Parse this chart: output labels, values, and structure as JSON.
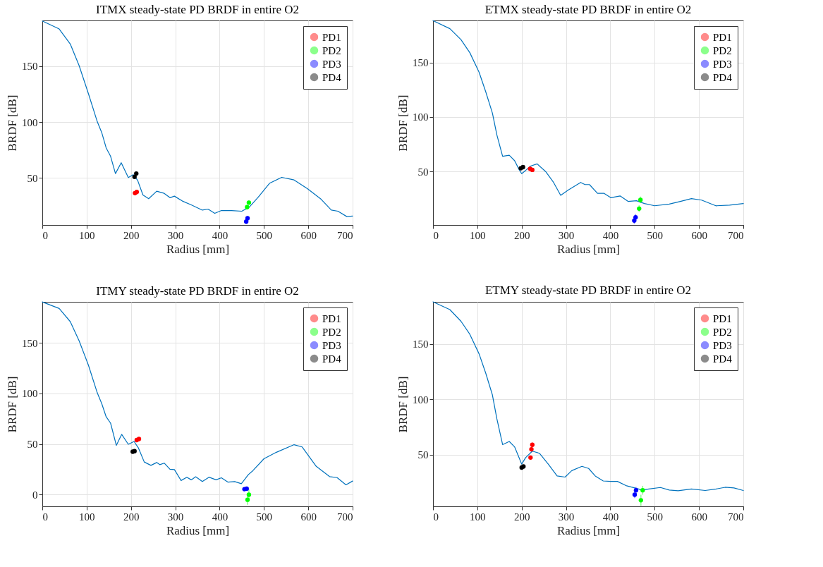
{
  "chart_data": [
    {
      "type": "line",
      "title": "ITMX steady-state PD BRDF in entire O2",
      "xlabel": "Radius [mm]",
      "ylabel": "BRDF [dB]",
      "xlim": [
        0,
        700
      ],
      "xticks": [
        0,
        100,
        200,
        300,
        400,
        500,
        600,
        700
      ],
      "ylim": [
        8,
        191
      ],
      "yticks": [
        50,
        100,
        150
      ],
      "grid": true,
      "legend": "top right",
      "series": [
        {
          "type": "line",
          "color": "#0072bd",
          "x": [
            0,
            38,
            63,
            83,
            104,
            124,
            134,
            144,
            154,
            165,
            178,
            194,
            205,
            215,
            227,
            240,
            258,
            275,
            288,
            298,
            316,
            336,
            361,
            374,
            389,
            404,
            427,
            450,
            467,
            487,
            513,
            540,
            568,
            598,
            629,
            652,
            667,
            687,
            700
          ],
          "values": [
            190.5,
            183.4,
            170,
            150.6,
            125.5,
            100.4,
            90.7,
            77,
            69.5,
            54,
            63.7,
            50.4,
            53,
            48,
            34.8,
            31.5,
            38.2,
            36.3,
            32.4,
            33.8,
            29.4,
            26,
            21.3,
            22.2,
            18.4,
            20.9,
            20.9,
            20.3,
            24,
            32.8,
            45.4,
            50.6,
            48.3,
            40.5,
            31,
            21.3,
            20.3,
            15.5,
            16
          ]
        },
        {
          "type": "scatter",
          "name": "PD1",
          "color": "#ff0000",
          "marker": "circle",
          "x": [
            209,
            213
          ],
          "values": [
            36.5,
            37.5
          ],
          "errors": [
            1,
            1
          ]
        },
        {
          "type": "scatter",
          "name": "PD2",
          "color": "#00ff00",
          "marker": "circle",
          "x": [
            462,
            466
          ],
          "values": [
            24,
            28
          ],
          "errors": [
            2,
            2
          ]
        },
        {
          "type": "scatter",
          "name": "PD3",
          "color": "#0000ff",
          "marker": "circle",
          "x": [
            460,
            463
          ],
          "values": [
            11,
            14
          ],
          "errors": [
            2,
            2
          ]
        },
        {
          "type": "scatter",
          "name": "PD4",
          "color": "#000000",
          "marker": "circle",
          "x": [
            208,
            212
          ],
          "values": [
            51,
            54
          ],
          "errors": [
            2,
            2
          ]
        }
      ]
    },
    {
      "type": "line",
      "title": "ETMX steady-state PD BRDF in entire O2",
      "xlabel": "Radius [mm]",
      "ylabel": "BRDF [dB]",
      "xlim": [
        0,
        700
      ],
      "xticks": [
        0,
        100,
        200,
        300,
        400,
        500,
        600,
        700
      ],
      "ylim": [
        1,
        188.5
      ],
      "yticks": [
        50,
        100,
        150
      ],
      "grid": true,
      "legend": "top right",
      "series": [
        {
          "type": "line",
          "color": "#0072bd",
          "x": [
            0,
            38,
            63,
            83,
            104,
            119,
            134,
            144,
            157,
            172,
            184,
            194,
            200,
            209,
            220,
            235,
            254,
            272,
            288,
            305,
            333,
            343,
            353,
            371,
            386,
            401,
            422,
            440,
            459,
            477,
            500,
            533,
            558,
            583,
            606,
            638,
            669,
            700
          ],
          "values": [
            188.3,
            181,
            171,
            159,
            141,
            123,
            103.6,
            83.7,
            63.9,
            64.9,
            60,
            52,
            48,
            51,
            55,
            57,
            50,
            40,
            28.2,
            33,
            40,
            38,
            38,
            30,
            30,
            26,
            27.6,
            22.6,
            23.2,
            20.6,
            18.6,
            20.2,
            22.6,
            25.2,
            23.8,
            18.6,
            19.2,
            20.6
          ]
        },
        {
          "type": "scatter",
          "name": "PD1",
          "color": "#ff0000",
          "marker": "circle",
          "x": [
            219,
            224
          ],
          "values": [
            52.5,
            51.5
          ],
          "errors": [
            1,
            1
          ]
        },
        {
          "type": "scatter",
          "name": "PD2",
          "color": "#00ff00",
          "marker": "circle",
          "x": [
            465,
            468
          ],
          "values": [
            16,
            24
          ],
          "errors": [
            3,
            3
          ]
        },
        {
          "type": "scatter",
          "name": "PD3",
          "color": "#0000ff",
          "marker": "circle",
          "x": [
            454,
            457
          ],
          "values": [
            5,
            8
          ],
          "errors": [
            3,
            3
          ]
        },
        {
          "type": "scatter",
          "name": "PD4",
          "color": "#000000",
          "marker": "circle",
          "x": [
            198,
            203
          ],
          "values": [
            53,
            54
          ],
          "errors": [
            1,
            1
          ]
        }
      ]
    },
    {
      "type": "line",
      "title": "ITMY steady-state PD BRDF in entire O2",
      "xlabel": "Radius [mm]",
      "ylabel": "BRDF [dB]",
      "xlim": [
        0,
        700
      ],
      "xticks": [
        0,
        100,
        200,
        300,
        400,
        500,
        600,
        700
      ],
      "ylim": [
        -11.5,
        190.5
      ],
      "yticks": [
        0,
        50,
        100,
        150
      ],
      "grid": true,
      "legend": "top right",
      "series": [
        {
          "type": "line",
          "color": "#0072bd",
          "x": [
            0,
            38,
            63,
            83,
            104,
            124,
            134,
            144,
            154,
            167,
            179,
            194,
            207,
            217,
            230,
            245,
            258,
            265,
            275,
            288,
            298,
            313,
            326,
            336,
            346,
            361,
            376,
            392,
            404,
            419,
            434,
            449,
            465,
            475,
            500,
            528,
            568,
            586,
            618,
            648,
            665,
            685,
            700
          ],
          "values": [
            190.4,
            184,
            171,
            152,
            128,
            100.6,
            90,
            77,
            70.7,
            48.7,
            59.6,
            49.8,
            52.6,
            46,
            32.3,
            29,
            31.8,
            29.7,
            31.2,
            25.2,
            24.8,
            14,
            17.3,
            14.7,
            17.7,
            13,
            17.3,
            14.7,
            16.7,
            12.4,
            13,
            10.9,
            19.9,
            23.7,
            35.5,
            41.9,
            49.4,
            47.2,
            28,
            17.9,
            16.9,
            9.8,
            13.5
          ]
        },
        {
          "type": "scatter",
          "name": "PD1",
          "color": "#ff0000",
          "marker": "circle",
          "x": [
            213,
            218
          ],
          "values": [
            54,
            55
          ],
          "errors": [
            1,
            1
          ]
        },
        {
          "type": "scatter",
          "name": "PD2",
          "color": "#00ff00",
          "marker": "circle",
          "x": [
            463,
            466
          ],
          "values": [
            -5,
            0
          ],
          "errors": [
            5,
            5
          ]
        },
        {
          "type": "scatter",
          "name": "PD3",
          "color": "#0000ff",
          "marker": "circle",
          "x": [
            456,
            461
          ],
          "values": [
            5.5,
            6
          ],
          "errors": [
            1,
            1
          ]
        },
        {
          "type": "scatter",
          "name": "PD4",
          "color": "#000000",
          "marker": "circle",
          "x": [
            204,
            208
          ],
          "values": [
            42.5,
            43
          ],
          "errors": [
            1,
            1
          ]
        }
      ]
    },
    {
      "type": "line",
      "title": "ETMY steady-state PD BRDF in entire O2",
      "xlabel": "Radius [mm]",
      "ylabel": "BRDF [dB]",
      "xlim": [
        0,
        700
      ],
      "xticks": [
        0,
        100,
        200,
        300,
        400,
        500,
        600,
        700
      ],
      "ylim": [
        3.5,
        188
      ],
      "yticks": [
        50,
        100,
        150
      ],
      "grid": true,
      "legend": "top right",
      "series": [
        {
          "type": "line",
          "color": "#0072bd",
          "x": [
            0,
            38,
            63,
            83,
            104,
            119,
            134,
            144,
            157,
            172,
            184,
            194,
            200,
            209,
            224,
            240,
            260,
            280,
            298,
            313,
            336,
            351,
            366,
            384,
            401,
            416,
            437,
            455,
            472,
            487,
            513,
            533,
            553,
            583,
            614,
            639,
            659,
            679,
            700
          ],
          "values": [
            188,
            181,
            170.5,
            158.8,
            141,
            123.6,
            104,
            82.6,
            59.2,
            62,
            57.2,
            47.5,
            41.6,
            47.5,
            53.3,
            51.4,
            41.6,
            30.9,
            29.9,
            35.7,
            39.6,
            37.7,
            30.9,
            26.4,
            26,
            26,
            22,
            20.1,
            18.2,
            19.2,
            20.5,
            18.2,
            17.6,
            19.2,
            17.8,
            19.2,
            20.7,
            20.1,
            17.8
          ]
        },
        {
          "type": "scatter",
          "name": "PD1",
          "color": "#ff0000",
          "marker": "circle",
          "x": [
            220,
            222,
            224
          ],
          "values": [
            47.5,
            55,
            59
          ],
          "errors": [
            1,
            2,
            2
          ]
        },
        {
          "type": "scatter",
          "name": "PD2",
          "color": "#00ff00",
          "marker": "circle",
          "x": [
            469,
            473
          ],
          "values": [
            9,
            18
          ],
          "errors": [
            5,
            4
          ]
        },
        {
          "type": "scatter",
          "name": "PD3",
          "color": "#0000ff",
          "marker": "circle",
          "x": [
            455,
            458
          ],
          "values": [
            14,
            18
          ],
          "errors": [
            3,
            3
          ]
        },
        {
          "type": "scatter",
          "name": "PD4",
          "color": "#000000",
          "marker": "circle",
          "x": [
            200,
            204
          ],
          "values": [
            38.5,
            39.5
          ],
          "errors": [
            1,
            1
          ]
        }
      ]
    }
  ]
}
